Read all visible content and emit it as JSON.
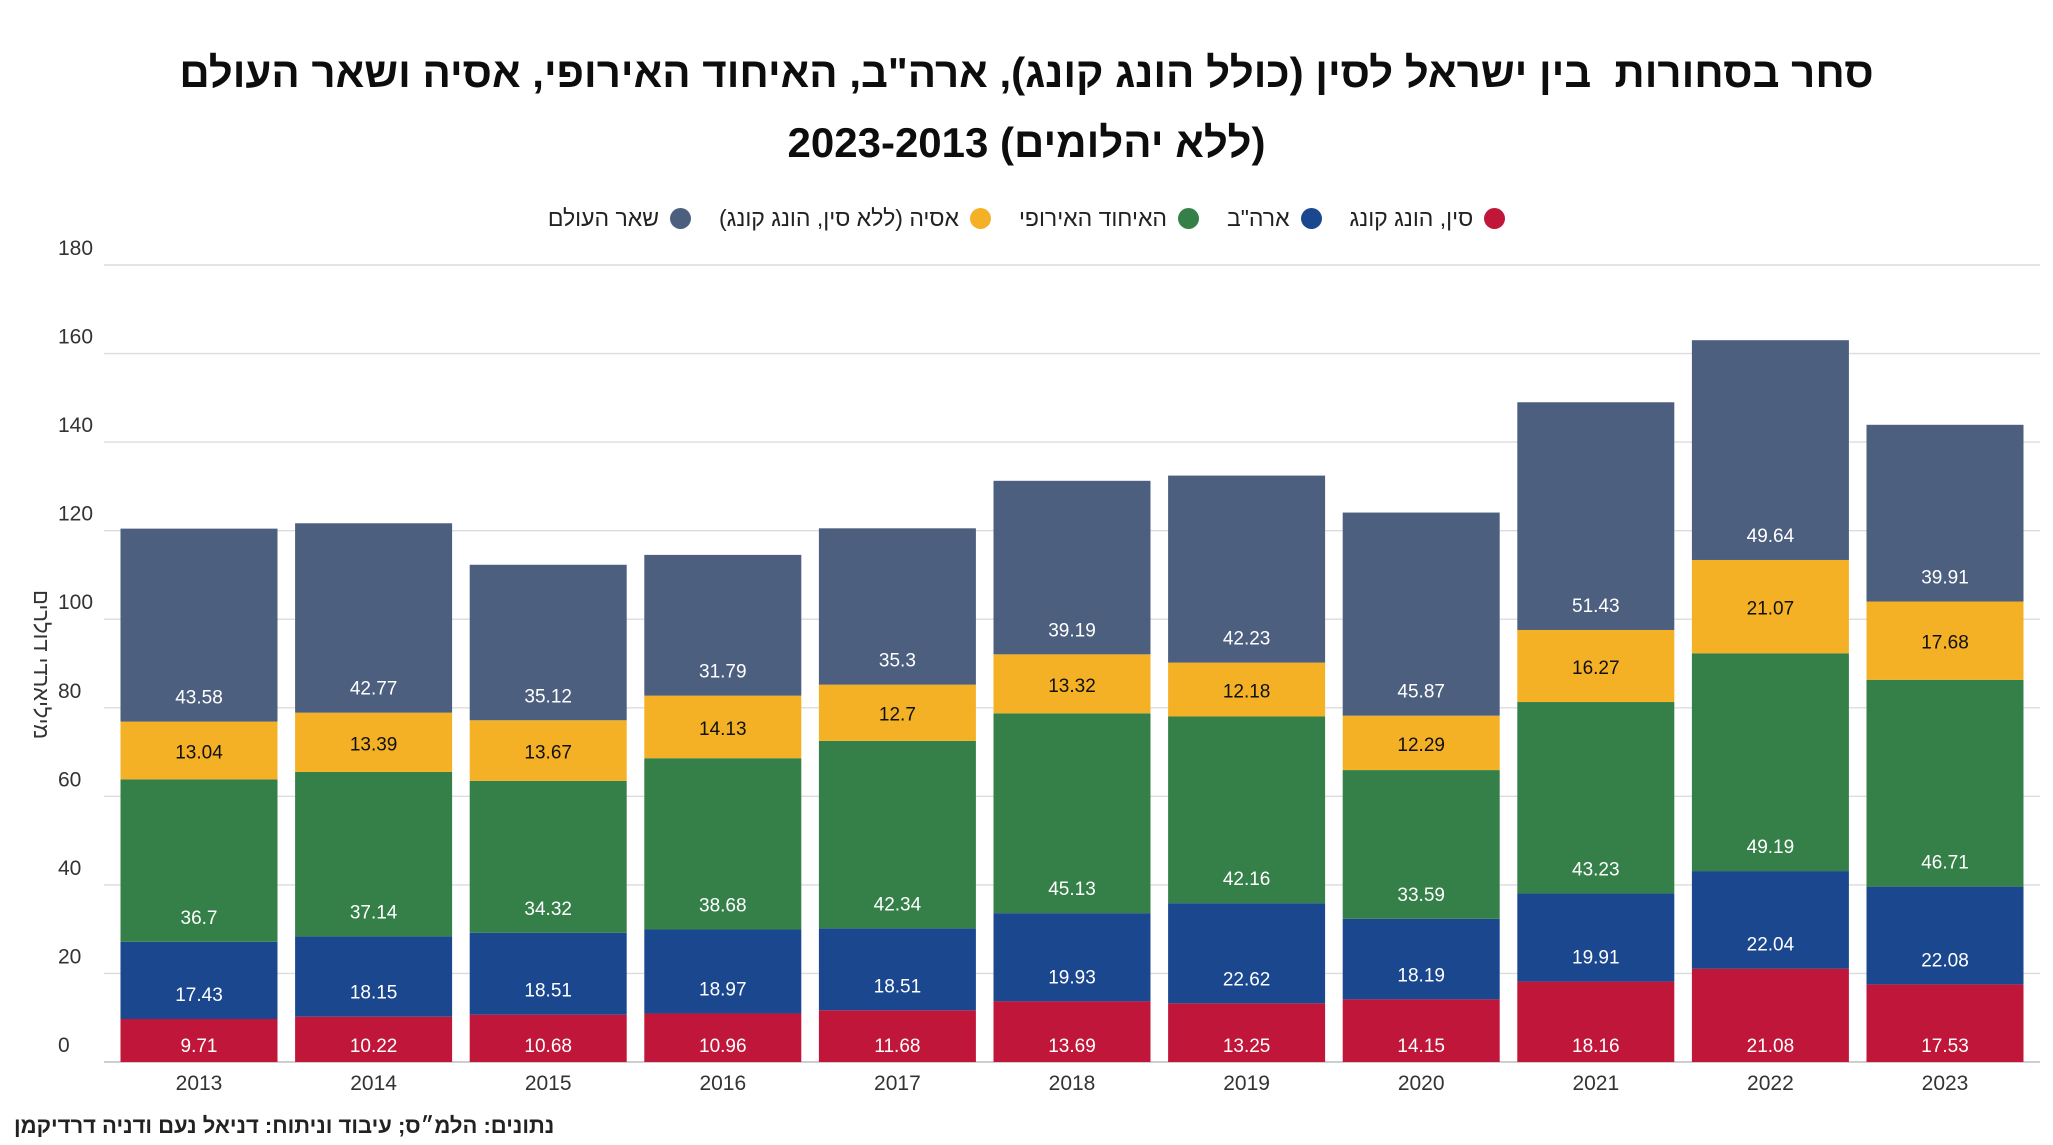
{
  "title_lines": [
    "סחר בסחורות  בין ישראל לסין (כולל הונג קונג), ארה\"ב, האיחוד האירופי, אסיה ושאר העולם",
    "(ללא יהלומים) 2023-2013"
  ],
  "source_note": "נתונים: הלמ״ס; עיבוד וניתוח: דניאל נעם ודניה דרדיקמן",
  "colors": {
    "china": "#c0163a",
    "usa": "#1b478e",
    "eu": "#358049",
    "asia": "#f4b125",
    "rest": "#4d5f7e",
    "grid": "#dcdcdc"
  },
  "chart_data": {
    "type": "bar",
    "stacked": true,
    "categories": [
      "2013",
      "2014",
      "2015",
      "2016",
      "2017",
      "2018",
      "2019",
      "2020",
      "2021",
      "2022",
      "2023"
    ],
    "series": [
      {
        "key": "china",
        "name": "סין, הונג קונג",
        "values": [
          9.71,
          10.22,
          10.68,
          10.96,
          11.68,
          13.69,
          13.25,
          14.15,
          18.16,
          21.08,
          17.53
        ]
      },
      {
        "key": "usa",
        "name": "ארה\"ב",
        "values": [
          17.43,
          18.15,
          18.51,
          18.97,
          18.51,
          19.93,
          22.62,
          18.19,
          19.91,
          22.04,
          22.08
        ]
      },
      {
        "key": "eu",
        "name": "האיחוד האירופי",
        "values": [
          36.7,
          37.14,
          34.32,
          38.68,
          42.34,
          45.13,
          42.16,
          33.59,
          43.23,
          49.19,
          46.71
        ]
      },
      {
        "key": "asia",
        "name": "אסיה (ללא סין, הונג קונג)",
        "values": [
          13.04,
          13.39,
          13.67,
          14.13,
          12.7,
          13.32,
          12.18,
          12.29,
          16.27,
          21.07,
          17.68
        ]
      },
      {
        "key": "rest",
        "name": "שאר העולם",
        "values": [
          43.58,
          42.77,
          35.12,
          31.79,
          35.3,
          39.19,
          42.23,
          45.87,
          51.43,
          49.64,
          39.91
        ]
      }
    ],
    "ylabel": "מיליארדי דולרים",
    "xlabel": "",
    "ylim": [
      0,
      180
    ],
    "yticks": [
      0,
      20,
      40,
      60,
      80,
      100,
      120,
      140,
      160,
      180
    ],
    "grid": true,
    "legend": "top-center"
  }
}
